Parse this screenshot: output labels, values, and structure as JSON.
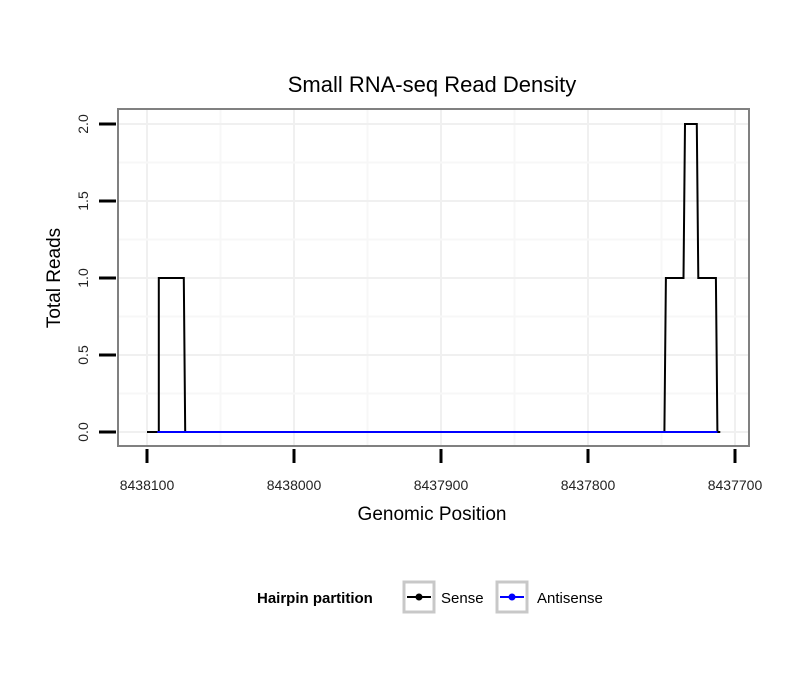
{
  "chart_data": {
    "type": "line",
    "title": "Small RNA-seq Read Density",
    "xlabel": "Genomic Position",
    "ylabel": "Total Reads",
    "xlim": [
      8438100,
      8437700
    ],
    "ylim": [
      0,
      2.0
    ],
    "x_reversed": true,
    "grid": true,
    "xticks": [
      8438100,
      8438000,
      8437900,
      8437800,
      8437700
    ],
    "xtick_labels": [
      "8438100",
      "8438000",
      "8437900",
      "8437800",
      "8437700"
    ],
    "yticks": [
      0,
      0.5,
      1.0,
      1.5,
      2.0
    ],
    "ytick_labels": [
      "0.0",
      "0.5",
      "1.0",
      "1.5",
      "2.0"
    ],
    "series": [
      {
        "name": "Sense",
        "color": "#000000",
        "points": [
          [
            8438100,
            0
          ],
          [
            8438092,
            0
          ],
          [
            8438092,
            1.0
          ],
          [
            8438075,
            1.0
          ],
          [
            8438074,
            0
          ],
          [
            8437748,
            0
          ],
          [
            8437747,
            1.0
          ],
          [
            8437735,
            1.0
          ],
          [
            8437734,
            2.0
          ],
          [
            8437726,
            2.0
          ],
          [
            8437725,
            1.0
          ],
          [
            8437713,
            1.0
          ],
          [
            8437712,
            0
          ],
          [
            8437710,
            0
          ]
        ]
      },
      {
        "name": "Antisense",
        "color": "#0000ff",
        "points": [
          [
            8438093,
            0
          ],
          [
            8438075,
            0
          ],
          [
            8437748,
            0
          ],
          [
            8437712,
            0
          ]
        ]
      }
    ],
    "legend": {
      "title": "Hairpin partition",
      "position": "bottom",
      "entries": [
        "Sense",
        "Antisense"
      ]
    }
  }
}
